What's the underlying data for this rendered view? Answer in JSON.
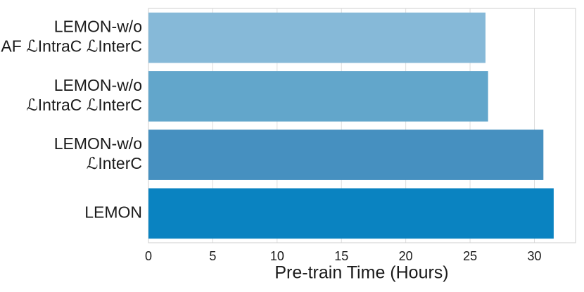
{
  "chart_data": {
    "type": "barh",
    "categories": [
      [
        "LEMON-w/o",
        "AF ℒIntraC ℒInterC"
      ],
      [
        "LEMON-w/o",
        "ℒIntraC ℒInterC"
      ],
      [
        "LEMON-w/o",
        "ℒInterC"
      ],
      [
        "LEMON"
      ]
    ],
    "values": [
      26.2,
      26.4,
      30.7,
      31.5
    ],
    "colors": [
      "#86b9d8",
      "#62a6cb",
      "#4690c0",
      "#0a83c1"
    ],
    "xlabel": "Pre-train Time (Hours)",
    "xlim": [
      0,
      33.2
    ],
    "xticks": [
      0,
      5,
      10,
      15,
      20,
      25,
      30
    ],
    "grid": true
  }
}
